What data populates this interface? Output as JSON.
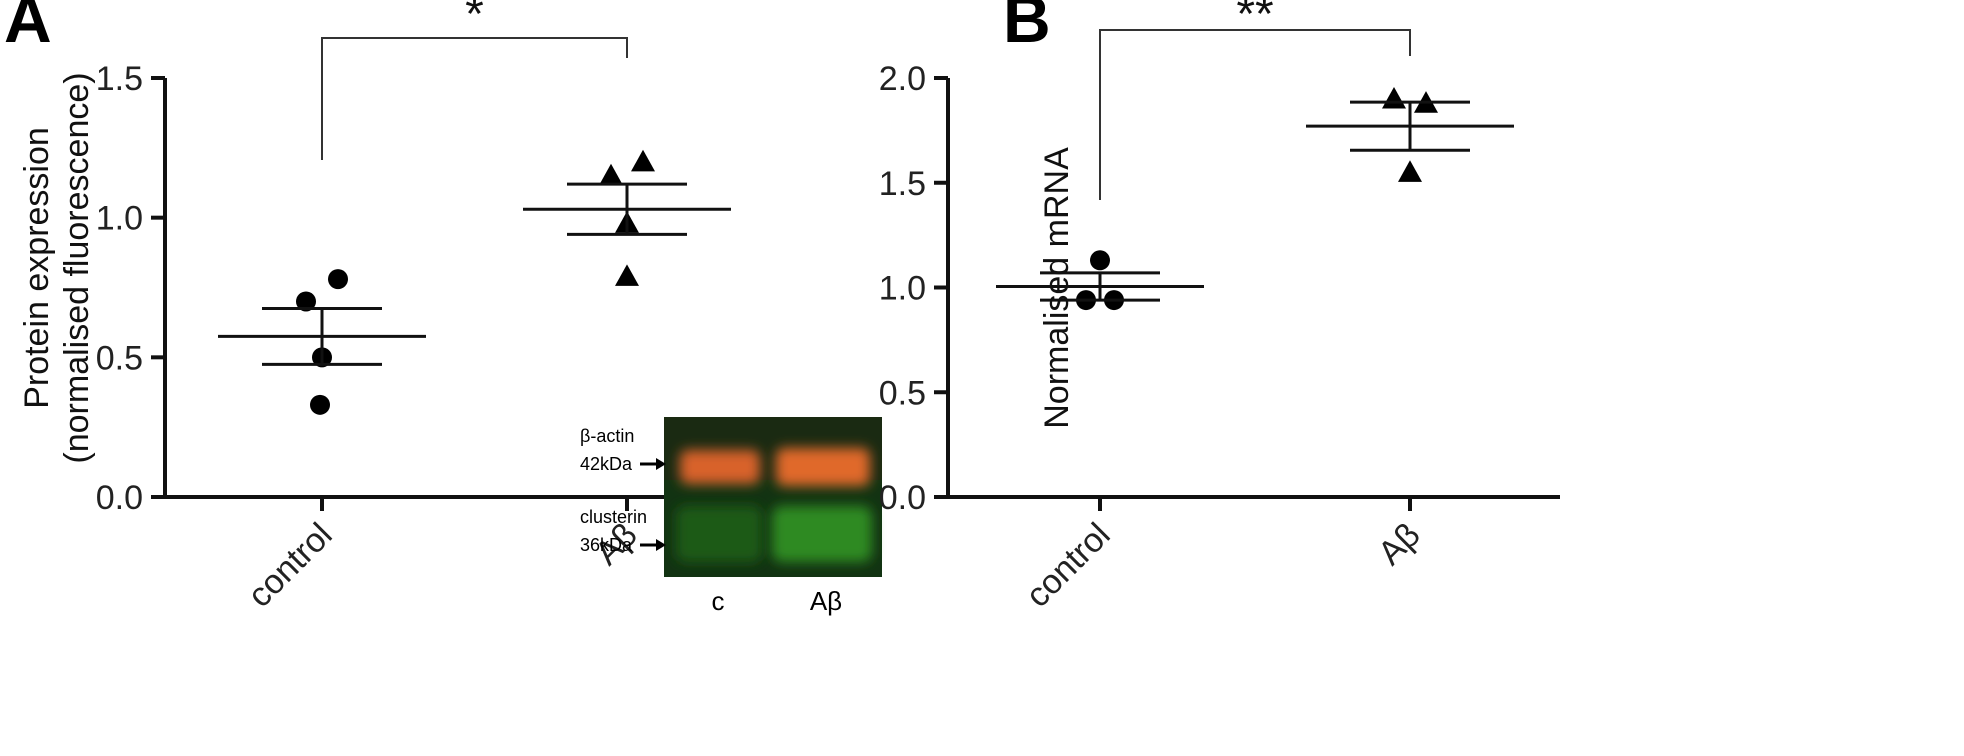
{
  "chart_data": [
    {
      "type": "scatter",
      "panel": "A",
      "ylabel_line1": "Protein expression",
      "ylabel_line2": "(normalised fluorescence)",
      "xlabel": "",
      "ylim": [
        0,
        1.5
      ],
      "yticks": [
        "0.0",
        "0.5",
        "1.0",
        "1.5"
      ],
      "categories": [
        "control",
        "Aβ"
      ],
      "series": [
        {
          "marker": "circle",
          "points": [
            0.7,
            0.78,
            0.5,
            0.33
          ],
          "mean": 0.575,
          "sem": 0.1
        },
        {
          "marker": "triangle",
          "points": [
            1.15,
            1.2,
            0.98,
            0.79
          ],
          "mean": 1.03,
          "sem": 0.09
        }
      ],
      "significance": "*",
      "inset": {
        "rows": [
          {
            "name": "β-actin",
            "size": "42kDa"
          },
          {
            "name": "clusterin",
            "size": "36kDa"
          }
        ],
        "lanes": [
          "c",
          "Aβ"
        ],
        "colors": {
          "actin_band": "#d8622a",
          "clusterin_band": "#2f8a22",
          "background": "#1a2a12"
        }
      }
    },
    {
      "type": "scatter",
      "panel": "B",
      "ylabel": "Normalised mRNA",
      "xlabel": "",
      "ylim": [
        0,
        2.0
      ],
      "yticks": [
        "0.0",
        "0.5",
        "1.0",
        "1.5",
        "2.0"
      ],
      "categories": [
        "control",
        "Aβ"
      ],
      "series": [
        {
          "marker": "circle",
          "points": [
            1.13,
            0.94,
            0.94
          ],
          "mean": 1.005,
          "sem": 0.065
        },
        {
          "marker": "triangle",
          "points": [
            1.9,
            1.88,
            1.55
          ],
          "mean": 1.77,
          "sem": 0.115
        }
      ],
      "significance": "**"
    }
  ]
}
